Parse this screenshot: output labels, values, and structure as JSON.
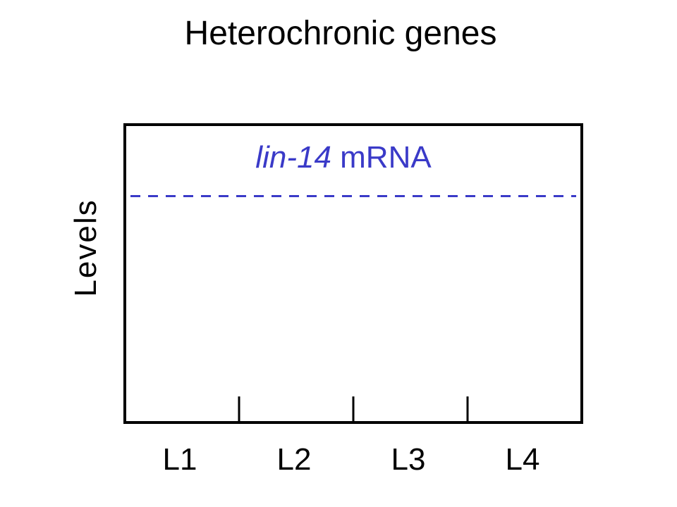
{
  "title": "Heterochronic genes",
  "chart_data": {
    "type": "line",
    "title": "Heterochronic genes",
    "xlabel": "",
    "ylabel": "Levels",
    "categories": [
      "L1",
      "L2",
      "L3",
      "L4"
    ],
    "ylim": [
      0,
      1
    ],
    "grid": false,
    "series": [
      {
        "name_italic": "lin-14",
        "name_rest": " mRNA",
        "color": "#3a3ac8",
        "style": "dashed",
        "values": [
          0.76,
          0.76,
          0.76,
          0.76
        ]
      }
    ]
  }
}
